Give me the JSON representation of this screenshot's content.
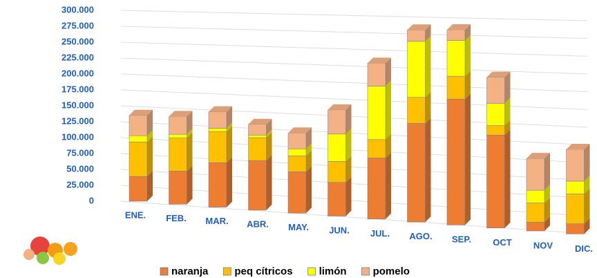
{
  "chart_data": {
    "type": "bar3d_stacked",
    "categories": [
      "ENE.",
      "FEB.",
      "MAR.",
      "ABR.",
      "MAY.",
      "JUN.",
      "JUL.",
      "AGO.",
      "SEP.",
      "OCT",
      "NOV",
      "DIC."
    ],
    "series": [
      {
        "name": "naranja",
        "color": "#ed7d31",
        "values": [
          39000,
          52000,
          70000,
          78000,
          65000,
          53000,
          96000,
          155000,
          198000,
          146000,
          14000,
          16000
        ]
      },
      {
        "name": "peq cítricos",
        "color": "#ffc000",
        "values": [
          54000,
          52000,
          49000,
          36000,
          25000,
          33000,
          29000,
          41000,
          36000,
          15000,
          30000,
          47000
        ]
      },
      {
        "name": "limón",
        "color": "#ffff00",
        "values": [
          10000,
          6000,
          5000,
          4000,
          11000,
          43000,
          84000,
          88000,
          56000,
          35000,
          20000,
          20000
        ]
      },
      {
        "name": "pomelo",
        "color": "#f4b183",
        "values": [
          32000,
          28000,
          26000,
          17000,
          25000,
          38000,
          36000,
          18000,
          17000,
          41000,
          50000,
          50000
        ]
      }
    ],
    "ylim": [
      0,
      300000
    ],
    "yticks": [
      0,
      {
        "value": 25000,
        "label": "25.000"
      },
      {
        "value": 50000,
        "label": "50.000"
      },
      {
        "value": 75000,
        "label": "75.000"
      },
      {
        "value": 100000,
        "label": "100.000"
      },
      {
        "value": 125000,
        "label": "125.000"
      },
      {
        "value": 150000,
        "label": "150.000"
      },
      {
        "value": 175000,
        "label": "175.000"
      },
      {
        "value": 200000,
        "label": "200.000"
      },
      {
        "value": 225000,
        "label": "225.000"
      },
      {
        "value": 250000,
        "label": "250.000"
      },
      {
        "value": 275000,
        "label": "275.000"
      },
      {
        "value": 300000,
        "label": "300.000"
      }
    ],
    "grid": true
  }
}
